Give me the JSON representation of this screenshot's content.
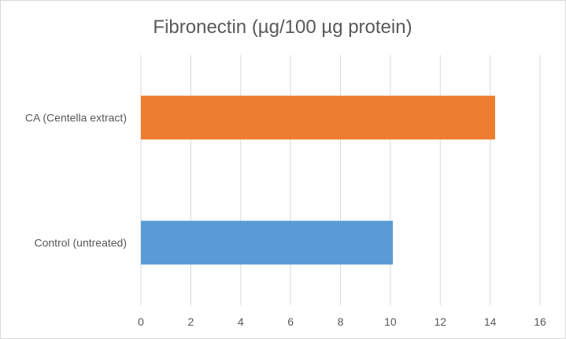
{
  "chart_data": {
    "type": "bar",
    "orientation": "horizontal",
    "title": "Fibronectin (µg/100 µg protein)",
    "categories": [
      "CA (Centella extract)",
      "Control (untreated)"
    ],
    "values": [
      14.2,
      10.1
    ],
    "colors": [
      "#ED7D31",
      "#5B9BD5"
    ],
    "xlim": [
      0,
      16
    ],
    "xticks": [
      "0",
      "2",
      "4",
      "6",
      "8",
      "10",
      "12",
      "14",
      "16"
    ],
    "grid": true,
    "legend": "none"
  }
}
